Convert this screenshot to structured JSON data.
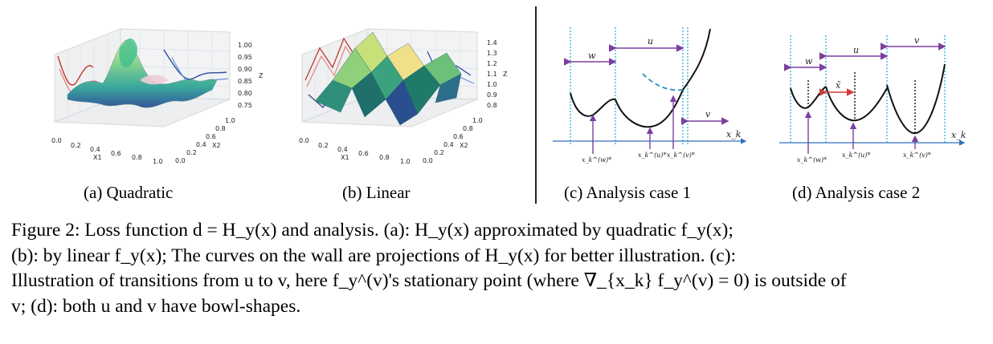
{
  "figure": {
    "subcaptions": {
      "a": "(a) Quadratic",
      "b": "(b) Linear",
      "c": "(c) Analysis case 1",
      "d": "(d) Analysis case 2"
    },
    "plot3d": {
      "x_axis_label": "X1",
      "y_axis_label": "X2",
      "z_axis_label": "Z",
      "x_ticks": [
        "0.0",
        "0.2",
        "0.4",
        "0.6",
        "0.8",
        "1.0"
      ],
      "y_ticks": [
        "0.0",
        "0.2",
        "0.4",
        "0.6",
        "0.8",
        "1.0"
      ],
      "z_ticks_quadratic": [
        "1.00",
        "0.95",
        "0.90",
        "0.85",
        "0.80",
        "0.75"
      ],
      "z_ticks_linear": [
        "1.4",
        "1.3",
        "1.2",
        "1.1",
        "1.0",
        "0.9",
        "0.8"
      ]
    },
    "analysis": {
      "axis_label": "x_k",
      "case1": {
        "w": "w",
        "u": "u",
        "v": "v",
        "points": [
          "x_k^(w)*",
          "x_k^(u)*",
          "x_k^(v)*"
        ]
      },
      "case2": {
        "w": "w",
        "u": "u",
        "v": "v",
        "xtilde": "x̃",
        "points": [
          "x_k^(w)*",
          "x_k^(u)*",
          "x_k^(v)*"
        ]
      }
    }
  },
  "caption": {
    "line1": "Figure 2: Loss function d = H_y(x) and analysis. (a): H_y(x) approximated by quadratic f_y(x);",
    "line2": "(b): by linear f_y(x); The curves on the wall are projections of H_y(x) for better illustration. (c):",
    "line3": "Illustration of transitions from u to v, here f_y^(v)'s stationary point (where ∇_{x_k} f_y^(v) = 0) is outside of",
    "line4": "v; (d): both u and v have bowl-shapes."
  }
}
